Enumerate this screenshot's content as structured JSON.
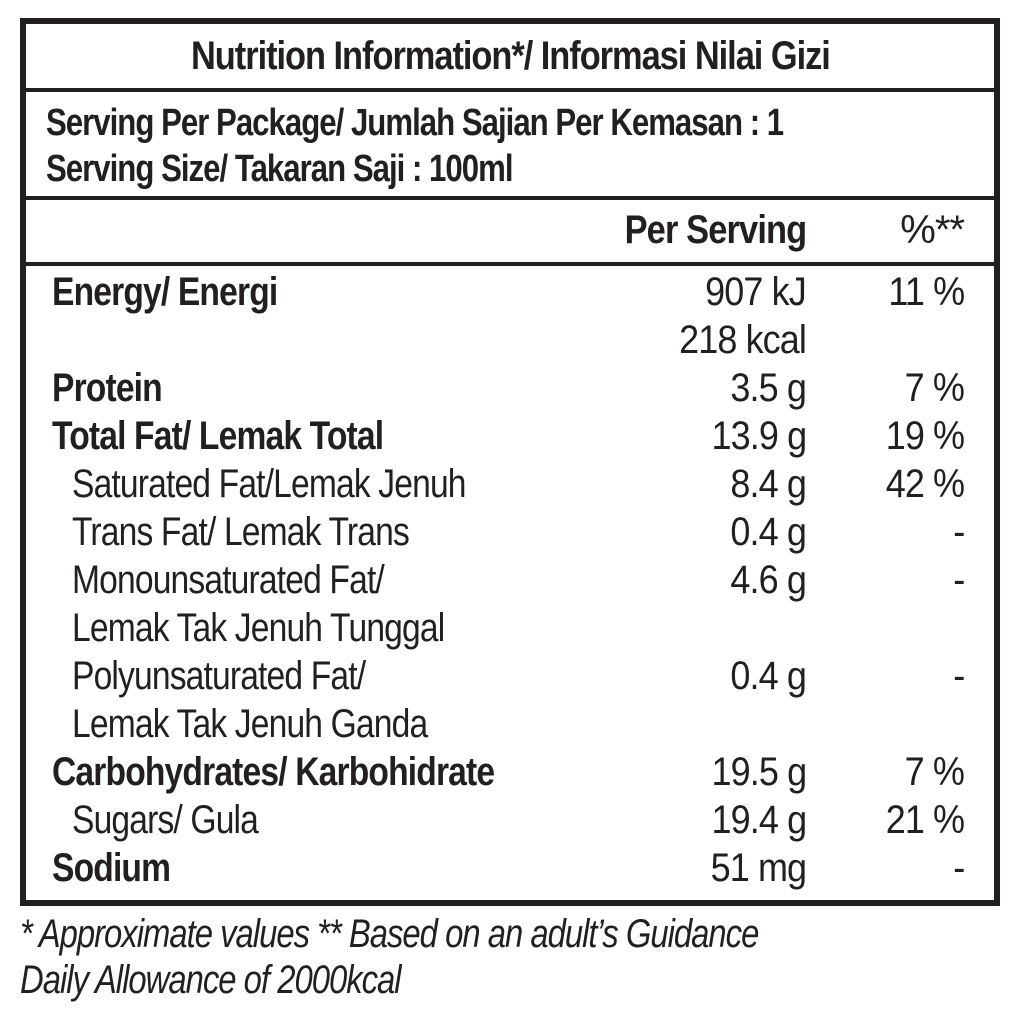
{
  "title": "Nutrition Information*/ Informasi Nilai Gizi",
  "serving": {
    "per_package": "Serving Per Package/ Jumlah Sajian Per Kemasan : 1",
    "size": "Serving Size/ Takaran Saji : 100ml"
  },
  "header": {
    "per_serving": "Per Serving",
    "percent": "%**"
  },
  "rows": [
    {
      "name": "Energy/ Energi",
      "value": "907 kJ",
      "percent": "11 %"
    },
    {
      "name": "",
      "value": "218 kcal",
      "percent": ""
    },
    {
      "name": "Protein",
      "value": "3.5 g",
      "percent": "7 %"
    },
    {
      "name": "Total Fat/ Lemak Total",
      "value": "13.9 g",
      "percent": "19 %"
    },
    {
      "name": "Saturated Fat/Lemak Jenuh",
      "value": "8.4 g",
      "percent": "42 %"
    },
    {
      "name": "Trans Fat/ Lemak Trans",
      "value": "0.4 g",
      "percent": "-"
    },
    {
      "name": "Monounsaturated Fat/",
      "value": "4.6 g",
      "percent": "-"
    },
    {
      "name": "Lemak Tak Jenuh Tunggal",
      "value": "",
      "percent": ""
    },
    {
      "name": "Polyunsaturated Fat/",
      "value": "0.4 g",
      "percent": "-"
    },
    {
      "name": "Lemak Tak Jenuh Ganda",
      "value": "",
      "percent": ""
    },
    {
      "name": "Carbohydrates/ Karbohidrate",
      "value": "19.5 g",
      "percent": "7 %"
    },
    {
      "name": "Sugars/ Gula",
      "value": "19.4 g",
      "percent": "21 %"
    },
    {
      "name": "Sodium",
      "value": "51 mg",
      "percent": "-"
    }
  ],
  "footnote": {
    "line1": "* Approximate values  ** Based on an adult’s Guidance",
    "line2": "Daily Allowance of 2000kcal"
  }
}
